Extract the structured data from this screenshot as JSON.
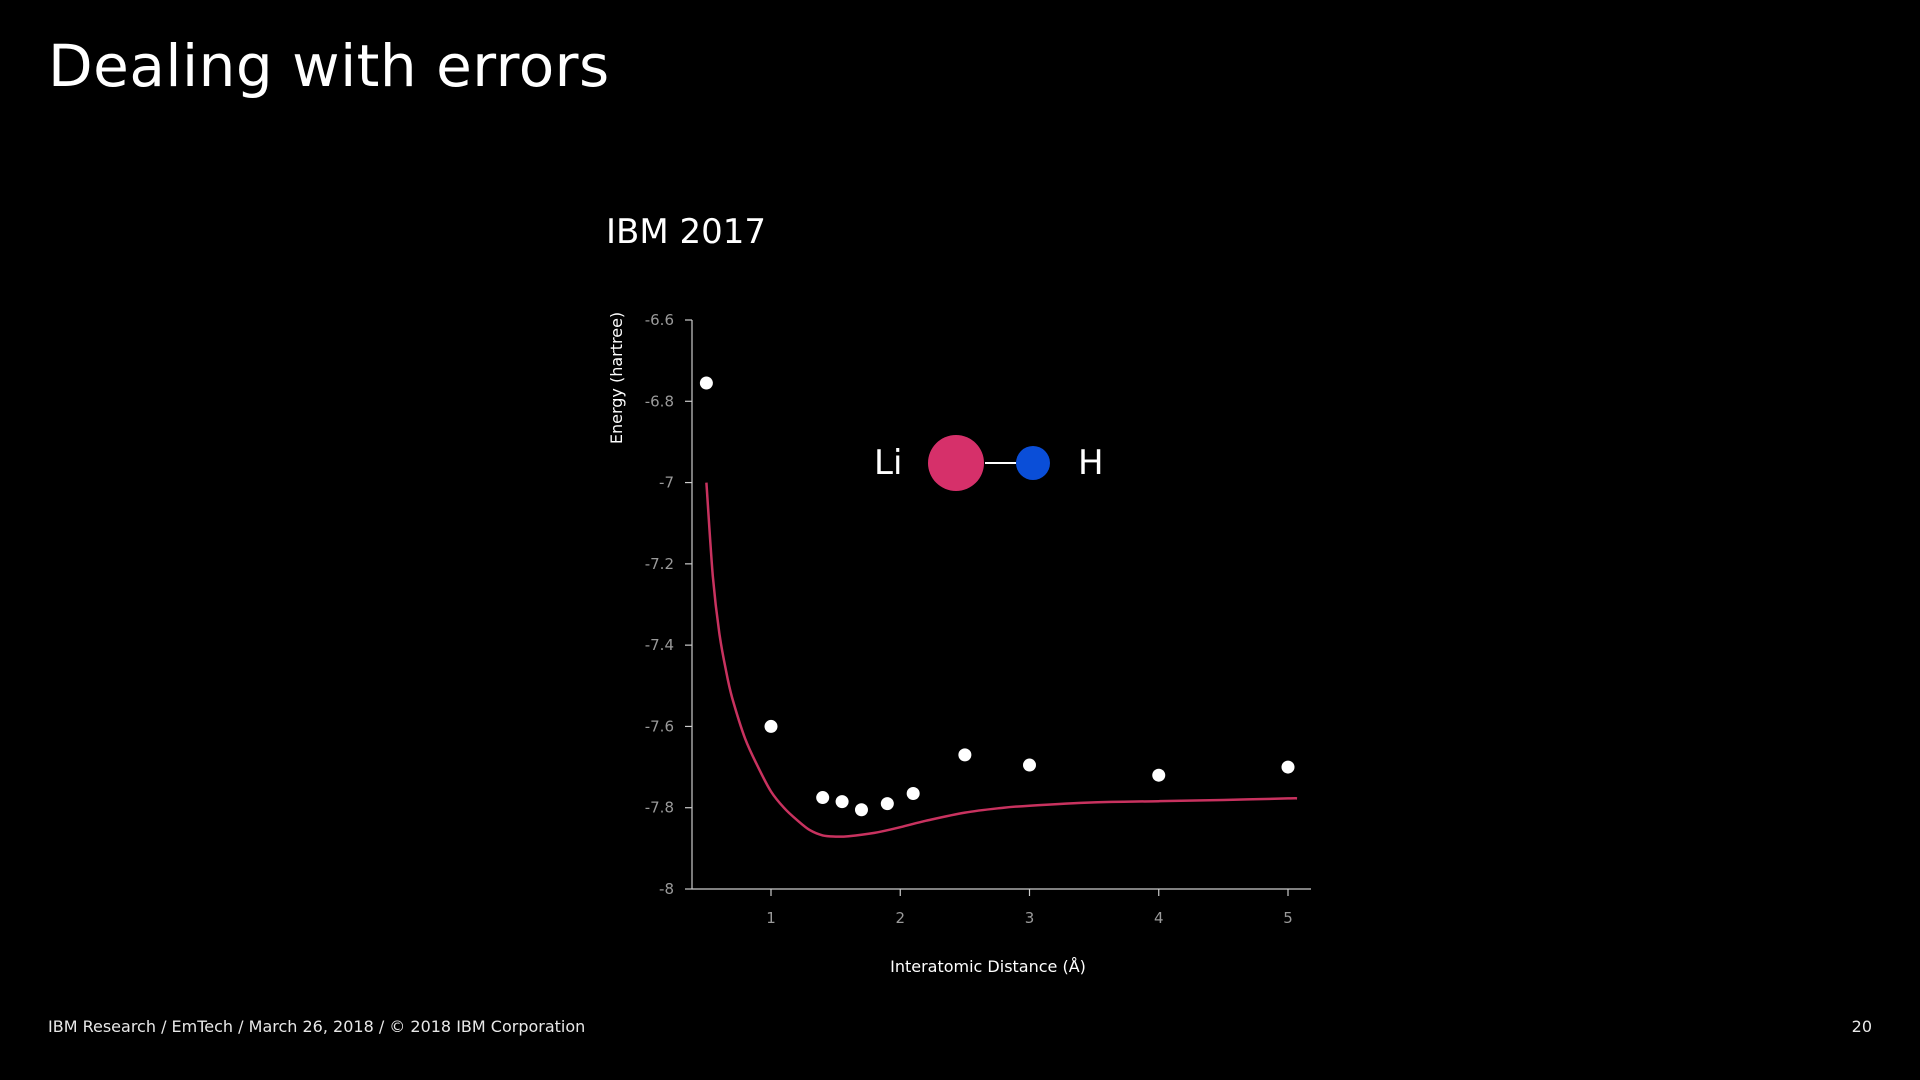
{
  "slide": {
    "title": "Dealing with errors",
    "footer": "IBM Research / EmTech / March 26, 2018 / © 2018 IBM Corporation",
    "page_number": "20"
  },
  "colors": {
    "background": "#000000",
    "curve": "#c8325f",
    "points": "#ffffff",
    "li_atom": "#d6306a",
    "h_atom": "#0a4ed8",
    "axis": "#cccccc"
  },
  "molecule": {
    "atom_left": "Li",
    "atom_right": "H"
  },
  "chart_data": {
    "type": "scatter",
    "title": "IBM 2017",
    "xlabel": "Interatomic Distance (Å)",
    "ylabel": "Energy (hartree)",
    "xlim": [
      0.4,
      5.2
    ],
    "ylim": [
      -8,
      -6.6
    ],
    "xticks": [
      1,
      2,
      3,
      4,
      5
    ],
    "yticks": [
      -6.6,
      -6.8,
      -7,
      -7.2,
      -7.4,
      -7.6,
      -7.8,
      -8
    ],
    "ytick_labels": [
      "-6.6",
      "-6.8",
      "-7",
      "-7.2",
      "-7.4",
      "-7.6",
      "-7.8",
      "-8"
    ],
    "xtick_labels": [
      "1",
      "2",
      "3",
      "4",
      "5"
    ],
    "grid": false,
    "series": [
      {
        "kind": "points",
        "x": [
          0.5,
          1.0,
          1.4,
          1.55,
          1.7,
          1.9,
          2.1,
          2.5,
          3.0,
          4.0,
          5.0
        ],
        "y": [
          -6.755,
          -7.6,
          -7.775,
          -7.785,
          -7.805,
          -7.79,
          -7.765,
          -7.67,
          -7.695,
          -7.72,
          -7.7
        ]
      },
      {
        "kind": "line",
        "x": [
          0.5,
          0.55,
          0.6,
          0.65,
          0.7,
          0.8,
          0.9,
          1.0,
          1.1,
          1.2,
          1.3,
          1.4,
          1.5,
          1.6,
          1.8,
          2.0,
          2.2,
          2.5,
          2.8,
          3.0,
          3.5,
          4.0,
          4.5,
          5.0,
          5.07
        ],
        "y": [
          -7.0,
          -7.23,
          -7.37,
          -7.46,
          -7.53,
          -7.63,
          -7.7,
          -7.76,
          -7.8,
          -7.83,
          -7.855,
          -7.868,
          -7.871,
          -7.87,
          -7.862,
          -7.848,
          -7.832,
          -7.812,
          -7.8,
          -7.795,
          -7.787,
          -7.784,
          -7.781,
          -7.777,
          -7.777
        ]
      }
    ]
  }
}
